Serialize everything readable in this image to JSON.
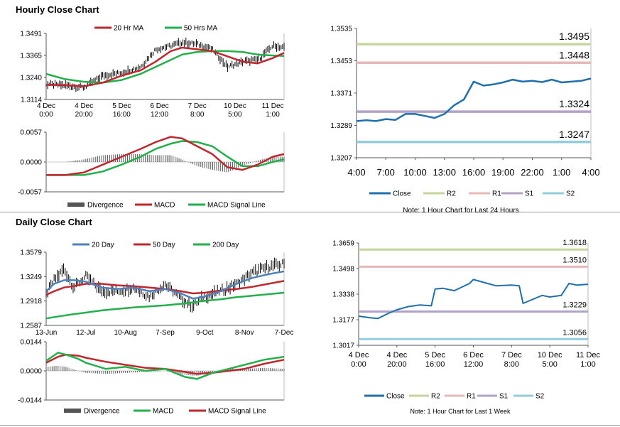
{
  "sections": {
    "hourly_title": "Hourly Close Chart",
    "daily_title": "Daily Close Chart"
  },
  "colors": {
    "close": "#1f6fae",
    "ma20hr": "#c0272d",
    "ma50hr": "#22b04b",
    "d20": "#4f81bd",
    "d50": "#c0272d",
    "d200": "#22b04b",
    "r2": "#c3d69b",
    "r1": "#e6b9b8",
    "s1": "#b3a2c7",
    "s2": "#93cddd",
    "divergence": "#555555",
    "macd_h": "#c0272d",
    "signal_h": "#22b04b",
    "macd_d": "#22b04b",
    "signal_d": "#c0272d"
  },
  "chart_data": [
    {
      "id": "hourly_price",
      "type": "line",
      "legend": [
        "20 Hr MA",
        "50 Hrs MA"
      ],
      "ylim": [
        1.3114,
        1.3491
      ],
      "yticks": [
        "1.3491",
        "1.3365",
        "1.3240",
        "1.3114"
      ],
      "xticks": [
        [
          "4 Dec",
          "0:00"
        ],
        [
          "4 Dec",
          "20:00"
        ],
        [
          "5 Dec",
          "16:00"
        ],
        [
          "6 Dec",
          "12:00"
        ],
        [
          "7 Dec",
          "8:00"
        ],
        [
          "10 Dec",
          "5:00"
        ],
        [
          "11 Dec",
          "1:00"
        ]
      ],
      "x": [
        0,
        0.5,
        1,
        1.5,
        2,
        2.5,
        2.9,
        3.3,
        3.6,
        4,
        4.4,
        4.8,
        5.2,
        5.6,
        6,
        6.3
      ],
      "close": [
        1.32,
        1.3195,
        1.3182,
        1.325,
        1.3268,
        1.33,
        1.34,
        1.342,
        1.344,
        1.343,
        1.34,
        1.33,
        1.333,
        1.334,
        1.342,
        1.341
      ],
      "ma20": [
        1.3198,
        1.3195,
        1.319,
        1.321,
        1.325,
        1.328,
        1.333,
        1.339,
        1.341,
        1.34,
        1.339,
        1.336,
        1.333,
        1.332,
        1.335,
        1.338
      ],
      "ma50": [
        1.326,
        1.323,
        1.3215,
        1.321,
        1.3225,
        1.326,
        1.33,
        1.334,
        1.337,
        1.3385,
        1.339,
        1.339,
        1.3385,
        1.337,
        1.3365,
        1.3362
      ]
    },
    {
      "id": "hourly_macd",
      "type": "line",
      "legend": [
        "Divergence",
        "MACD",
        "MACD Signal Line"
      ],
      "ylim": [
        -0.0057,
        0.0057
      ],
      "yticks": [
        "0.0057",
        "0.0000",
        "-0.0057"
      ],
      "x": [
        0,
        0.5,
        1,
        1.5,
        2,
        2.5,
        2.9,
        3.3,
        3.6,
        4,
        4.4,
        4.8,
        5.2,
        5.6,
        6,
        6.3
      ],
      "macd": [
        -0.0025,
        -0.0025,
        -0.002,
        -0.0005,
        0.001,
        0.0025,
        0.0038,
        0.0048,
        0.0045,
        0.003,
        0.0015,
        -0.001,
        -0.0015,
        -0.0005,
        0.001,
        0.0015
      ],
      "signal": [
        -0.0025,
        -0.0025,
        -0.0025,
        -0.0018,
        -0.0005,
        0.001,
        0.0025,
        0.0035,
        0.004,
        0.0038,
        0.003,
        0.001,
        -0.0008,
        -0.0008,
        0.0,
        0.0005
      ],
      "divergence": [
        0,
        0,
        0.0005,
        0.0013,
        0.0015,
        0.0015,
        0.0013,
        0.0013,
        0.0005,
        -0.0008,
        -0.0015,
        -0.002,
        -0.0007,
        0.0003,
        0.001,
        0.001
      ]
    },
    {
      "id": "hourly_levels",
      "type": "line",
      "legend": [
        "Close",
        "R2",
        "R1",
        "S1",
        "S2"
      ],
      "note": "Note: 1 Hour Chart for Last 24 Hours",
      "ylim": [
        1.3207,
        1.3535
      ],
      "yticks": [
        "1.3535",
        "1.3453",
        "1.3371",
        "1.3289",
        "1.3207"
      ],
      "xticks": [
        "4:00",
        "7:00",
        "10:00",
        "13:00",
        "16:00",
        "19:00",
        "22:00",
        "1:00",
        "4:00"
      ],
      "close": [
        1.33,
        1.3302,
        1.33,
        1.3305,
        1.3303,
        1.3318,
        1.3318,
        1.3313,
        1.3308,
        1.3318,
        1.334,
        1.3355,
        1.34,
        1.339,
        1.3393,
        1.3398,
        1.3405,
        1.34,
        1.3402,
        1.3399,
        1.3405,
        1.3398,
        1.34,
        1.3402,
        1.3408
      ],
      "levels": {
        "R2": 1.3495,
        "R1": 1.3448,
        "S1": 1.3324,
        "S2": 1.3247
      },
      "level_labels": {
        "R2": "1.3495",
        "R1": "1.3448",
        "S1": "1.3324",
        "S2": "1.3247"
      }
    },
    {
      "id": "daily_price",
      "type": "line",
      "legend": [
        "20 Day",
        "50 Day",
        "200 Day"
      ],
      "ylim": [
        1.2587,
        1.3579
      ],
      "yticks": [
        "1.3579",
        "1.3249",
        "1.2918",
        "1.2587"
      ],
      "xticks": [
        "13-Jun",
        "12-Jul",
        "10-Aug",
        "7-Sep",
        "9-Oct",
        "8-Nov",
        "7-Dec"
      ],
      "x": [
        0,
        0.2,
        0.45,
        0.7,
        1,
        1.4,
        1.8,
        2.2,
        2.6,
        3,
        3.4,
        3.7,
        4,
        4.4,
        4.8,
        5.2,
        5.6,
        6
      ],
      "close": [
        1.3,
        1.32,
        1.335,
        1.31,
        1.325,
        1.305,
        1.305,
        1.31,
        1.298,
        1.315,
        1.295,
        1.285,
        1.298,
        1.305,
        1.315,
        1.33,
        1.338,
        1.342
      ],
      "d20": [
        1.305,
        1.315,
        1.32,
        1.32,
        1.318,
        1.31,
        1.308,
        1.31,
        1.305,
        1.308,
        1.302,
        1.295,
        1.298,
        1.305,
        1.315,
        1.323,
        1.328,
        1.332
      ],
      "d50": [
        1.3,
        1.305,
        1.31,
        1.312,
        1.315,
        1.315,
        1.313,
        1.312,
        1.31,
        1.308,
        1.305,
        1.302,
        1.303,
        1.306,
        1.308,
        1.311,
        1.315,
        1.319
      ],
      "d200": [
        1.268,
        1.27,
        1.272,
        1.274,
        1.276,
        1.279,
        1.281,
        1.283,
        1.2845,
        1.286,
        1.288,
        1.29,
        1.292,
        1.294,
        1.297,
        1.299,
        1.301,
        1.303
      ]
    },
    {
      "id": "daily_macd",
      "type": "line",
      "legend": [
        "Divergence",
        "MACD",
        "MACD Signal Line"
      ],
      "ylim": [
        -0.0144,
        0.0144
      ],
      "yticks": [
        "0.0144",
        "0.0000",
        "-0.0144"
      ],
      "x": [
        0,
        0.3,
        0.5,
        0.8,
        1,
        1.5,
        2,
        2.5,
        3,
        3.5,
        3.8,
        4.2,
        4.6,
        5,
        5.5,
        6
      ],
      "macd": [
        0.005,
        0.009,
        0.008,
        0.006,
        0.004,
        0.001,
        0.002,
        0.0,
        0.001,
        -0.003,
        -0.004,
        -0.001,
        0.001,
        0.003,
        0.0055,
        0.007
      ],
      "signal": [
        0.004,
        0.007,
        0.008,
        0.0075,
        0.0065,
        0.0045,
        0.003,
        0.0015,
        0.001,
        -0.0005,
        -0.0015,
        -0.001,
        0.0,
        0.001,
        0.0035,
        0.0055
      ],
      "divergence": [
        0.002,
        0.0025,
        0.002,
        0.0,
        -0.001,
        -0.0015,
        -0.001,
        -0.0005,
        0.0,
        -0.002,
        -0.0025,
        -0.0005,
        0.001,
        0.001,
        0.0015,
        0.001
      ]
    },
    {
      "id": "daily_levels",
      "type": "line",
      "legend": [
        "Close",
        "R2",
        "R1",
        "S1",
        "S2"
      ],
      "note": "Note: 1 Hour Chart for Last 1 Week",
      "ylim": [
        1.3017,
        1.3659
      ],
      "yticks": [
        "1.3659",
        "1.3498",
        "1.3338",
        "1.3177",
        "1.3017"
      ],
      "xticks": [
        [
          "4 Dec",
          "0:00"
        ],
        [
          "4 Dec",
          "20:00"
        ],
        [
          "5 Dec",
          "16:00"
        ],
        [
          "6 Dec",
          "12:00"
        ],
        [
          "7 Dec",
          "8:00"
        ],
        [
          "10 Dec",
          "5:00"
        ],
        [
          "11 Dec",
          "1:00"
        ]
      ],
      "x": [
        0,
        0.3,
        0.5,
        0.8,
        1,
        1.3,
        1.6,
        1.9,
        2,
        2.2,
        2.5,
        2.9,
        3,
        3.3,
        3.6,
        4,
        4.2,
        4.3,
        4.5,
        4.8,
        5,
        5.3,
        5.5,
        5.7,
        6
      ],
      "close": [
        1.32,
        1.319,
        1.3185,
        1.322,
        1.324,
        1.326,
        1.327,
        1.3265,
        1.337,
        1.3375,
        1.336,
        1.3405,
        1.343,
        1.341,
        1.339,
        1.3395,
        1.339,
        1.328,
        1.33,
        1.333,
        1.332,
        1.333,
        1.3405,
        1.3395,
        1.34
      ],
      "levels": {
        "R2": 1.3618,
        "R1": 1.351,
        "S1": 1.3229,
        "S2": 1.3056
      },
      "level_labels": {
        "R2": "1.3618",
        "R1": "1.3510",
        "S1": "1.3229",
        "S2": "1.3056"
      }
    }
  ]
}
